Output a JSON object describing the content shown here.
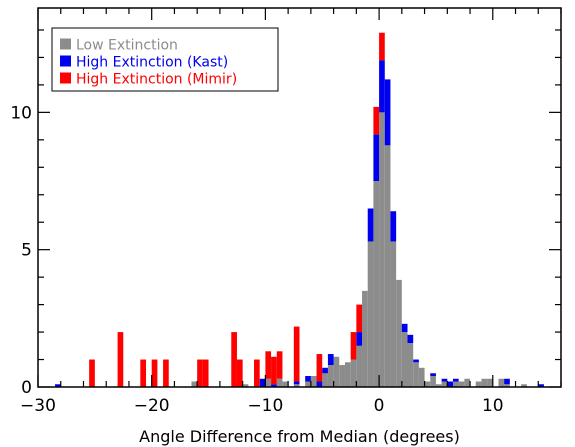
{
  "chart_data": {
    "type": "bar",
    "title": "",
    "xlabel": "Angle Difference from Median (degrees)",
    "ylabel": "",
    "xlim": [
      -30,
      16
    ],
    "ylim": [
      0,
      13.8
    ],
    "bin_width": 0.5,
    "x_ticks": [
      -30,
      -20,
      -10,
      0,
      10
    ],
    "y_ticks": [
      0,
      5,
      10
    ],
    "stacked": true,
    "grid": false,
    "legend_position": "top-left",
    "series": [
      {
        "name": "Low Extinction",
        "color": "#8c8c8c",
        "bins": [
          [
            -16.5,
            0.2
          ],
          [
            -12.0,
            0.1
          ],
          [
            -10.0,
            0.3
          ],
          [
            -9.0,
            0.3
          ],
          [
            -8.5,
            0.2
          ],
          [
            -7.5,
            0.1
          ],
          [
            -6.5,
            0.2
          ],
          [
            -6.0,
            0.4
          ],
          [
            -5.0,
            0.5
          ],
          [
            -4.5,
            0.8
          ],
          [
            -4.0,
            1.1
          ],
          [
            -3.5,
            0.8
          ],
          [
            -3.0,
            0.9
          ],
          [
            -2.5,
            1.0
          ],
          [
            -2.0,
            1.5
          ],
          [
            -1.5,
            3.5
          ],
          [
            -1.0,
            5.3
          ],
          [
            -0.5,
            7.5
          ],
          [
            0.0,
            10.0
          ],
          [
            0.5,
            8.8
          ],
          [
            1.0,
            5.3
          ],
          [
            1.5,
            3.9
          ],
          [
            2.0,
            2.0
          ],
          [
            2.5,
            1.6
          ],
          [
            3.0,
            0.9
          ],
          [
            3.5,
            0.7
          ],
          [
            4.0,
            0.2
          ],
          [
            4.5,
            0.4
          ],
          [
            5.0,
            0.1
          ],
          [
            5.5,
            0.2
          ],
          [
            6.5,
            0.2
          ],
          [
            7.0,
            0.2
          ],
          [
            7.5,
            0.3
          ],
          [
            8.5,
            0.2
          ],
          [
            9.0,
            0.3
          ],
          [
            9.5,
            0.3
          ],
          [
            10.5,
            0.3
          ],
          [
            11.0,
            0.1
          ],
          [
            12.5,
            0.1
          ]
        ]
      },
      {
        "name": "High Extinction (Kast)",
        "color": "#0000ee",
        "bins": [
          [
            -28.5,
            0.1
          ],
          [
            -10.5,
            0.3
          ],
          [
            -9.5,
            0.1
          ],
          [
            -7.5,
            0.1
          ],
          [
            -6.5,
            0.2
          ],
          [
            -5.5,
            0.2
          ],
          [
            -5.0,
            0.2
          ],
          [
            -4.5,
            0.4
          ],
          [
            -2.0,
            0.5
          ],
          [
            -1.0,
            1.2
          ],
          [
            -0.5,
            1.7
          ],
          [
            0.0,
            1.9
          ],
          [
            0.5,
            2.4
          ],
          [
            1.0,
            1.1
          ],
          [
            2.0,
            0.3
          ],
          [
            2.5,
            0.3
          ],
          [
            3.0,
            0.1
          ],
          [
            4.5,
            0.1
          ],
          [
            5.5,
            0.1
          ],
          [
            6.0,
            0.2
          ],
          [
            6.5,
            0.1
          ],
          [
            11.0,
            0.2
          ],
          [
            14.0,
            0.1
          ]
        ]
      },
      {
        "name": "High Extinction (Mimir)",
        "color": "#ff0000",
        "bins": [
          [
            -25.5,
            1.0
          ],
          [
            -23.0,
            2.0
          ],
          [
            -21.0,
            1.0
          ],
          [
            -20.0,
            1.0
          ],
          [
            -19.0,
            1.0
          ],
          [
            -16.0,
            1.0
          ],
          [
            -15.5,
            1.0
          ],
          [
            -13.0,
            2.0
          ],
          [
            -12.5,
            1.0
          ],
          [
            -11.0,
            1.0
          ],
          [
            -10.0,
            1.0
          ],
          [
            -9.5,
            1.0
          ],
          [
            -9.0,
            1.0
          ],
          [
            -7.5,
            2.0
          ],
          [
            -5.5,
            1.0
          ],
          [
            -2.5,
            1.0
          ],
          [
            -2.0,
            1.0
          ],
          [
            -0.5,
            1.0
          ],
          [
            0.0,
            1.0
          ]
        ]
      }
    ]
  }
}
